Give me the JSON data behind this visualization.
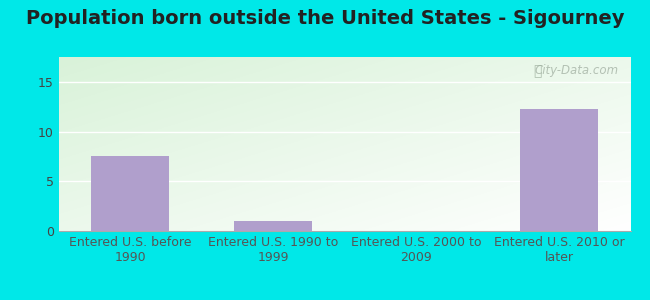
{
  "title": "Population born outside the United States - Sigourney",
  "categories": [
    "Entered U.S. before\n1990",
    "Entered U.S. 1990 to\n1999",
    "Entered U.S. 2000 to\n2009",
    "Entered U.S. 2010 or\nlater"
  ],
  "values": [
    7.5,
    1.0,
    0,
    12.3
  ],
  "bar_color": "#b09fcc",
  "ylim": [
    0,
    17.5
  ],
  "yticks": [
    0,
    5,
    10,
    15
  ],
  "outer_bg": "#00e8e8",
  "watermark_text": "City-Data.com",
  "title_fontsize": 14,
  "tick_fontsize": 9,
  "bar_width": 0.55,
  "tick_color": "#444444",
  "label_color": "#555555"
}
